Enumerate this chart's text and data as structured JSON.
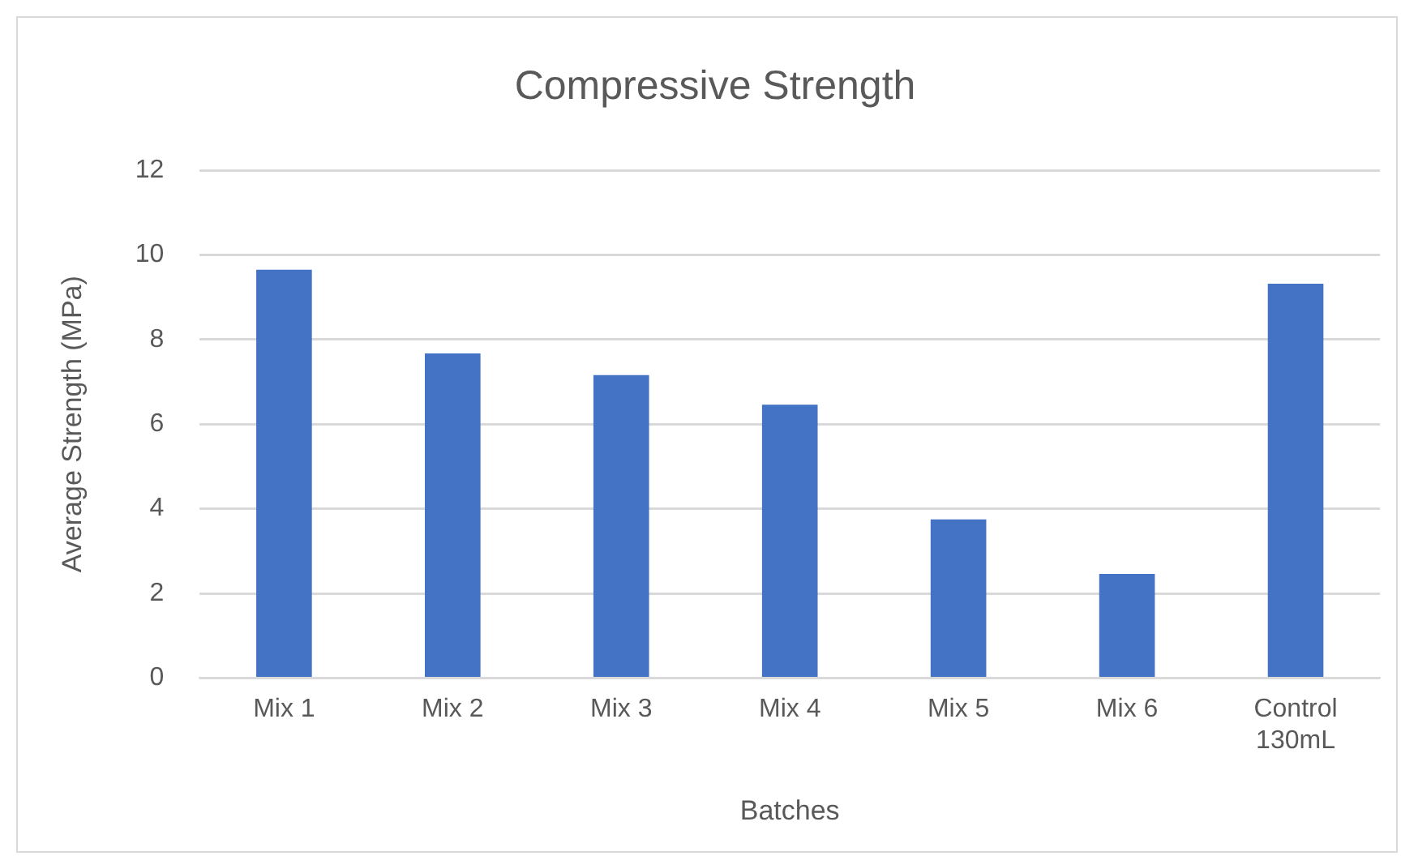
{
  "chart_data": {
    "type": "bar",
    "title": "Compressive Strength",
    "xlabel": "Batches",
    "ylabel": "Average Strength (MPa)",
    "categories": [
      "Mix 1",
      "Mix 2",
      "Mix 3",
      "Mix 4",
      "Mix 5",
      "Mix 6",
      "Control 130mL"
    ],
    "values": [
      9.65,
      7.67,
      7.16,
      6.46,
      3.75,
      2.46,
      9.32
    ],
    "color": "#4472c4",
    "ylim": [
      0,
      12
    ],
    "yticks": [
      0,
      2,
      4,
      6,
      8,
      10,
      12
    ],
    "grid": "y"
  }
}
